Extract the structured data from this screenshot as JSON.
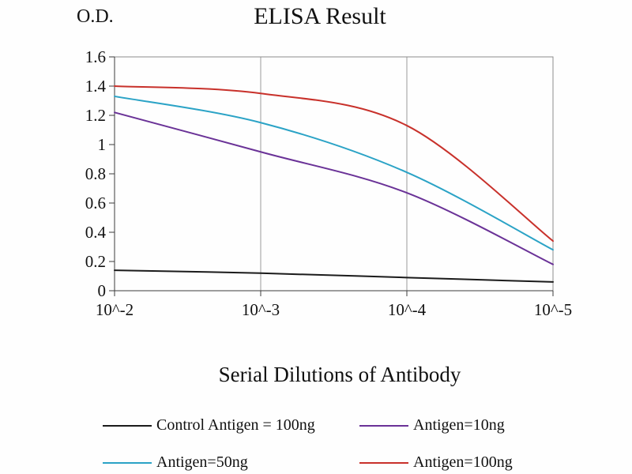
{
  "chart_data": {
    "type": "line",
    "title": "ELISA Result",
    "ylabel": "O.D.",
    "xlabel": "Serial Dilutions of Antibody",
    "categories": [
      "10^-2",
      "10^-3",
      "10^-4",
      "10^-5"
    ],
    "y_ticks": [
      "0",
      "0.2",
      "0.4",
      "0.6",
      "0.8",
      "1",
      "1.2",
      "1.4",
      "1.6"
    ],
    "ylim": [
      0,
      1.6
    ],
    "grid": "vertical-only",
    "legend_position": "bottom",
    "series": [
      {
        "name": "Control Antigen = 100ng",
        "color": "#1b1b1b",
        "values": [
          0.14,
          0.12,
          0.09,
          0.06
        ]
      },
      {
        "name": "Antigen=10ng",
        "color": "#6a3297",
        "values": [
          1.22,
          0.95,
          0.67,
          0.18
        ]
      },
      {
        "name": "Antigen=50ng",
        "color": "#2ba3c6",
        "values": [
          1.33,
          1.15,
          0.81,
          0.28
        ]
      },
      {
        "name": "Antigen=100ng",
        "color": "#c8312b",
        "values": [
          1.4,
          1.35,
          1.13,
          0.34
        ]
      }
    ]
  }
}
